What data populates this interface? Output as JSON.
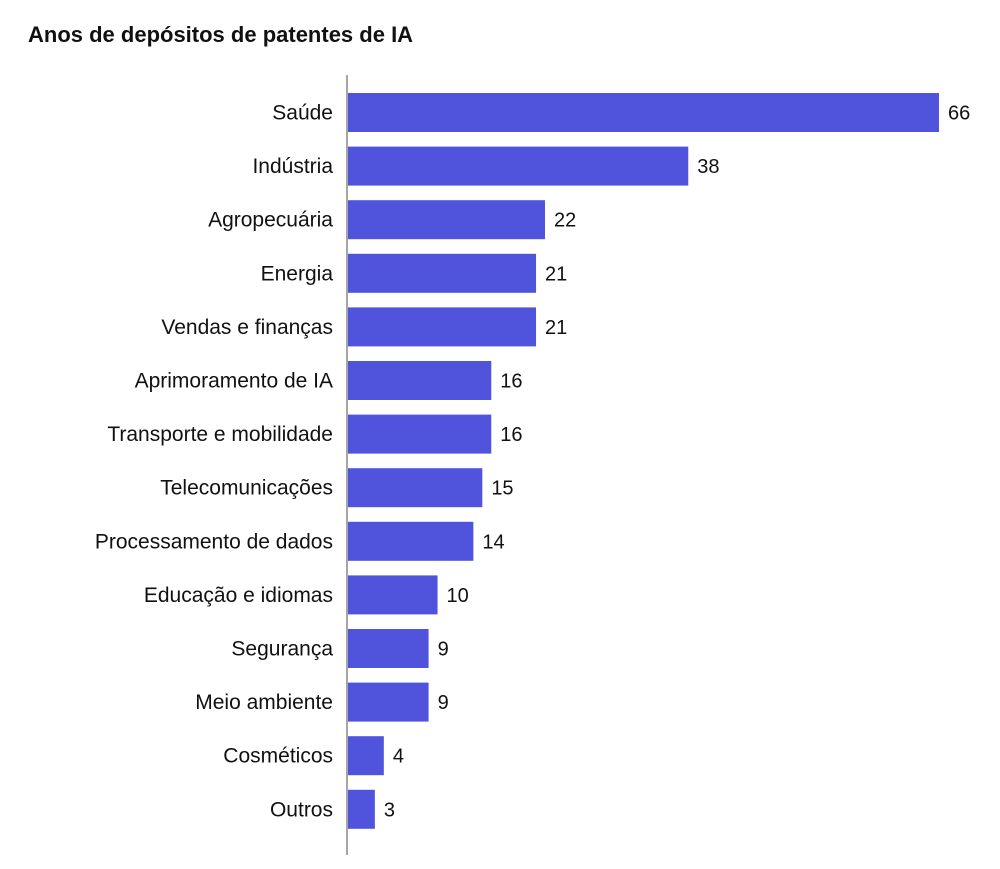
{
  "title": "Anos de depósitos de patentes de IA",
  "colors": {
    "bar": "#5053db",
    "axis": "#888888",
    "text": "#111111"
  },
  "chart_data": {
    "type": "bar",
    "orientation": "horizontal",
    "title": "Anos de depósitos de patentes de IA",
    "xlabel": "",
    "ylabel": "",
    "grid": false,
    "xlim": [
      0,
      66
    ],
    "categories": [
      "Saúde",
      "Indústria",
      "Agropecuária",
      "Energia",
      "Vendas e finanças",
      "Aprimoramento de IA",
      "Transporte e mobilidade",
      "Telecomunicações",
      "Processamento de dados",
      "Educação e idiomas",
      "Segurança",
      "Meio ambiente",
      "Cosméticos",
      "Outros"
    ],
    "values": [
      66,
      38,
      22,
      21,
      21,
      16,
      16,
      15,
      14,
      10,
      9,
      9,
      4,
      3
    ]
  }
}
